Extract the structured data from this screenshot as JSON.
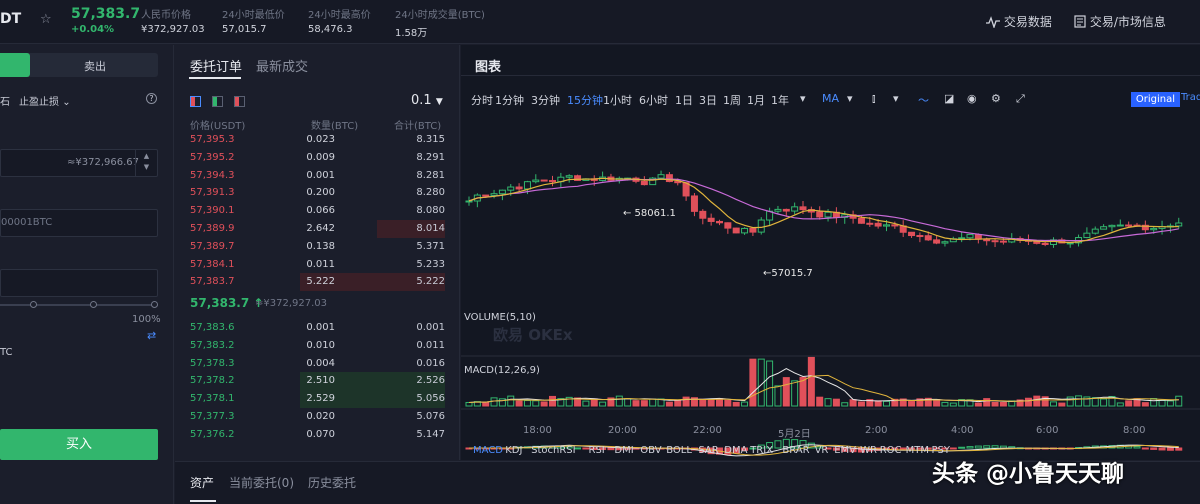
{
  "ticker": {
    "symbol": "DT",
    "price": "57,383.7",
    "change": "+0.04%",
    "stats": [
      {
        "label": "人民币价格",
        "value": "¥372,927.03"
      },
      {
        "label": "24小时最低价",
        "value": "57,015.7"
      },
      {
        "label": "24小时最高价",
        "value": "58,476.3"
      },
      {
        "label": "24小时成交量(BTC)",
        "value": "1.58万"
      }
    ],
    "links": [
      "交易数据",
      "交易/市场信息"
    ]
  },
  "trade_form": {
    "buy_tab": "",
    "sell_tab": "卖出",
    "order_type_a": "石",
    "order_type_b": "止盈止损",
    "price_hint": "≈¥372,966.67",
    "amount_placeholder": "00001BTC",
    "slider_max": "100%",
    "avail_unit": "TC",
    "buy_button": "买入"
  },
  "orderbook": {
    "tab_active": "委托订单",
    "tab_idle": "最新成交",
    "precision": "0.1",
    "headers": [
      "价格(USDT)",
      "数量(BTC)",
      "合计(BTC)"
    ],
    "asks": [
      {
        "price": "57,395.3",
        "qty": "0.023",
        "total": "8.315",
        "depth": 0.0
      },
      {
        "price": "57,395.2",
        "qty": "0.009",
        "total": "8.291",
        "depth": 0.0
      },
      {
        "price": "57,394.3",
        "qty": "0.001",
        "total": "8.281",
        "depth": 0.0
      },
      {
        "price": "57,391.3",
        "qty": "0.200",
        "total": "8.280",
        "depth": 0.0
      },
      {
        "price": "57,390.1",
        "qty": "0.066",
        "total": "8.080",
        "depth": 0.0
      },
      {
        "price": "57,389.9",
        "qty": "2.642",
        "total": "8.014",
        "depth": 0.47
      },
      {
        "price": "57,389.7",
        "qty": "0.138",
        "total": "5.371",
        "depth": 0.0
      },
      {
        "price": "57,384.1",
        "qty": "0.011",
        "total": "5.233",
        "depth": 0.0
      },
      {
        "price": "57,383.7",
        "qty": "5.222",
        "total": "5.222",
        "depth": 1.0
      }
    ],
    "mid_price": "57,383.7 ↑",
    "mid_cny": "≈¥372,927.03",
    "bids": [
      {
        "price": "57,383.6",
        "qty": "0.001",
        "total": "0.001",
        "depth": 0.0
      },
      {
        "price": "57,383.2",
        "qty": "0.010",
        "total": "0.011",
        "depth": 0.0
      },
      {
        "price": "57,378.3",
        "qty": "0.004",
        "total": "0.016",
        "depth": 0.0
      },
      {
        "price": "57,378.2",
        "qty": "2.510",
        "total": "2.526",
        "depth": 1.0
      },
      {
        "price": "57,378.1",
        "qty": "2.529",
        "total": "5.056",
        "depth": 1.0
      },
      {
        "price": "57,377.3",
        "qty": "0.020",
        "total": "5.076",
        "depth": 0.0
      },
      {
        "price": "57,376.2",
        "qty": "0.070",
        "total": "5.147",
        "depth": 0.0
      }
    ]
  },
  "chart": {
    "title": "图表",
    "intervals": [
      "分时",
      "1分钟",
      "3分钟",
      "15分钟",
      "1小时",
      "6小时",
      "1日",
      "3日",
      "1周",
      "1月",
      "1年"
    ],
    "selected_interval": "15分钟",
    "ma_label": "MA",
    "original_label": "Original",
    "trading_label": "Trad",
    "high_marker": "← 58061.1",
    "low_marker": "←57015.7",
    "watermark": "欧易 OKEx",
    "volume_label": "VOLUME(5,10)",
    "macd_label": "MACD(12,26,9)",
    "time_labels": [
      "18:00",
      "20:00",
      "22:00",
      "5月2日",
      "2:00",
      "4:00",
      "6:00",
      "8:00"
    ],
    "indicators": [
      "MACD",
      "KDJ",
      "StochRSI",
      "RSI",
      "DMI",
      "OBV",
      "BOLL",
      "SAR",
      "DMA",
      "TRIX",
      "BRAR",
      "VR",
      "EMV",
      "WR",
      "ROC",
      "MTM",
      "PSY"
    ],
    "colors": {
      "up": "#32b66d",
      "down": "#e0505a",
      "accent": "#4a8cff"
    }
  },
  "bottom": {
    "tabs": [
      "资产",
      "当前委托(0)",
      "历史委托"
    ]
  },
  "watermark_text": "头条 @小鲁天天聊"
}
